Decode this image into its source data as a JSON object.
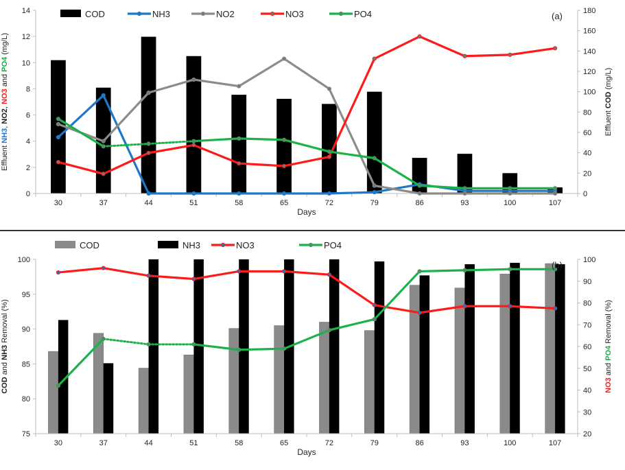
{
  "colors": {
    "black": "#000000",
    "gray_line": "#8c8c8c",
    "gray_bar": "#8a8a8a",
    "nh3_blue": "#1f77c8",
    "no3_red": "#ff1a1a",
    "po4_green": "#1bb24a",
    "axis": "#bdbdbd",
    "separator": "#333333"
  },
  "chart_data": [
    {
      "type": "bar+line",
      "panel_label": "(a)",
      "xlabel": "Days",
      "categories": [
        "30",
        "37",
        "44",
        "51",
        "58",
        "65",
        "72",
        "79",
        "86",
        "93",
        "100",
        "107"
      ],
      "y_left": {
        "ylim": [
          0,
          14
        ],
        "ticks": [
          "0",
          "2",
          "4",
          "6",
          "8",
          "10",
          "12",
          "14"
        ]
      },
      "y_right": {
        "ylim": [
          0,
          180
        ],
        "ticks": [
          "0",
          "20",
          "40",
          "60",
          "80",
          "100",
          "120",
          "140",
          "160",
          "180"
        ]
      },
      "ylabel_left_parts": [
        {
          "text": "Effluent ",
          "color": "#222222",
          "bold": false
        },
        {
          "text": "NH3",
          "color": "#1f77c8",
          "bold": true
        },
        {
          "text": ", ",
          "color": "#222222",
          "bold": false
        },
        {
          "text": "NO2",
          "color": "#222222",
          "bold": true
        },
        {
          "text": ", ",
          "color": "#222222",
          "bold": false
        },
        {
          "text": "NO3",
          "color": "#ff1a1a",
          "bold": true
        },
        {
          "text": " and ",
          "color": "#222222",
          "bold": false
        },
        {
          "text": "PO4",
          "color": "#1bb24a",
          "bold": true
        },
        {
          "text": " (mg/L)",
          "color": "#222222",
          "bold": false
        }
      ],
      "ylabel_right_parts": [
        {
          "text": "Effluent ",
          "color": "#222222",
          "bold": false
        },
        {
          "text": "COD",
          "color": "#222222",
          "bold": true
        },
        {
          "text": " (mg/L)",
          "color": "#222222",
          "bold": false
        }
      ],
      "legend": [
        "COD",
        "NH3",
        "NO2",
        "NO3",
        "PO4"
      ],
      "bars": {
        "name": "COD",
        "axis": "right",
        "values": [
          131,
          104,
          154,
          135,
          97,
          93,
          88,
          100,
          35,
          39,
          20,
          6
        ]
      },
      "series": [
        {
          "name": "NH3",
          "axis": "left",
          "values": [
            4.3,
            7.5,
            0.0,
            0.0,
            0.0,
            0.0,
            0.0,
            0.1,
            0.7,
            0.2,
            0.2,
            0.2
          ]
        },
        {
          "name": "NO2",
          "axis": "left",
          "values": [
            5.3,
            4.0,
            7.7,
            8.7,
            8.2,
            10.3,
            8.0,
            0.6,
            0.0,
            0.0,
            0.0,
            0.0
          ]
        },
        {
          "name": "NO3",
          "axis": "left",
          "values": [
            2.4,
            1.5,
            3.1,
            3.7,
            2.3,
            2.1,
            2.8,
            10.3,
            12.0,
            10.5,
            10.6,
            11.1
          ]
        },
        {
          "name": "PO4",
          "axis": "left",
          "values": [
            5.7,
            3.6,
            3.8,
            4.0,
            4.2,
            4.1,
            3.2,
            2.7,
            0.6,
            0.4,
            0.4,
            0.4
          ],
          "dotted_segment": [
            1,
            3
          ]
        }
      ]
    },
    {
      "type": "bar+line",
      "panel_label": "(b)",
      "xlabel": "Days",
      "categories": [
        "30",
        "37",
        "44",
        "51",
        "58",
        "65",
        "72",
        "79",
        "86",
        "93",
        "100",
        "107"
      ],
      "y_left": {
        "ylim": [
          75,
          100
        ],
        "ticks": [
          "75",
          "80",
          "85",
          "90",
          "95",
          "100"
        ]
      },
      "y_right": {
        "ylim": [
          20,
          100
        ],
        "ticks": [
          "20",
          "30",
          "40",
          "50",
          "60",
          "70",
          "80",
          "90",
          "100"
        ]
      },
      "ylabel_left_parts": [
        {
          "text": "COD",
          "color": "#222222",
          "bold": true
        },
        {
          "text": " and ",
          "color": "#222222",
          "bold": false
        },
        {
          "text": "NH3",
          "color": "#222222",
          "bold": true
        },
        {
          "text": " Removal (%)",
          "color": "#222222",
          "bold": false
        }
      ],
      "ylabel_right_parts": [
        {
          "text": "NO3",
          "color": "#ff1a1a",
          "bold": true
        },
        {
          "text": " and ",
          "color": "#222222",
          "bold": false
        },
        {
          "text": "PO4",
          "color": "#1bb24a",
          "bold": true
        },
        {
          "text": " Removal (%)",
          "color": "#222222",
          "bold": false
        }
      ],
      "legend": [
        "COD",
        "NH3",
        "NO3",
        "PO4"
      ],
      "bar_series": [
        {
          "name": "COD",
          "axis": "left",
          "values": [
            86.8,
            89.4,
            84.4,
            86.3,
            90.1,
            90.5,
            91.0,
            89.8,
            96.3,
            95.9,
            97.9,
            99.4
          ]
        },
        {
          "name": "NH3",
          "axis": "left",
          "values": [
            91.3,
            85.1,
            100.0,
            100.0,
            100.0,
            100.0,
            100.0,
            99.7,
            97.7,
            99.3,
            99.5,
            99.3
          ]
        }
      ],
      "series": [
        {
          "name": "NO3",
          "axis": "right",
          "values": [
            94,
            96,
            92.5,
            91,
            94.5,
            94.5,
            93,
            79,
            75.5,
            78.5,
            78.5,
            77.5
          ]
        },
        {
          "name": "PO4",
          "axis": "right",
          "values": [
            42,
            63.5,
            61,
            61,
            58.5,
            59,
            67.5,
            72.5,
            94.5,
            95,
            95.5,
            95.5
          ],
          "dotted_segment": [
            1,
            3
          ]
        }
      ]
    }
  ]
}
